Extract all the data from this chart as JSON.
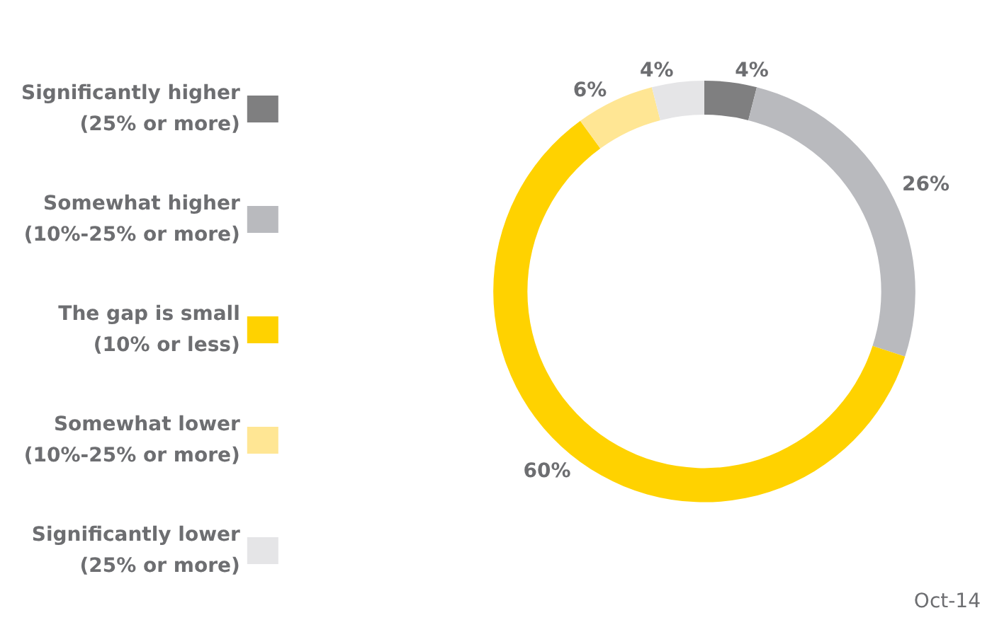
{
  "chart_data": {
    "type": "donut",
    "categories": [
      "Significantly higher\n(25% or more)",
      "Somewhat higher\n(10%-25% or more)",
      "The gap is small\n(10% or less)",
      "Somewhat lower\n(10%-25% or more)",
      "Significantly lower\n(25% or more)"
    ],
    "values": [
      4,
      26,
      60,
      6,
      4
    ],
    "colors": [
      "#7f7f80",
      "#b9babe",
      "#ffd200",
      "#ffe694",
      "#e5e5e7"
    ],
    "value_labels": [
      "4%",
      "26%",
      "60%",
      "6%",
      "4%"
    ],
    "legend": "left",
    "annotations": [
      "Oct-14"
    ]
  }
}
